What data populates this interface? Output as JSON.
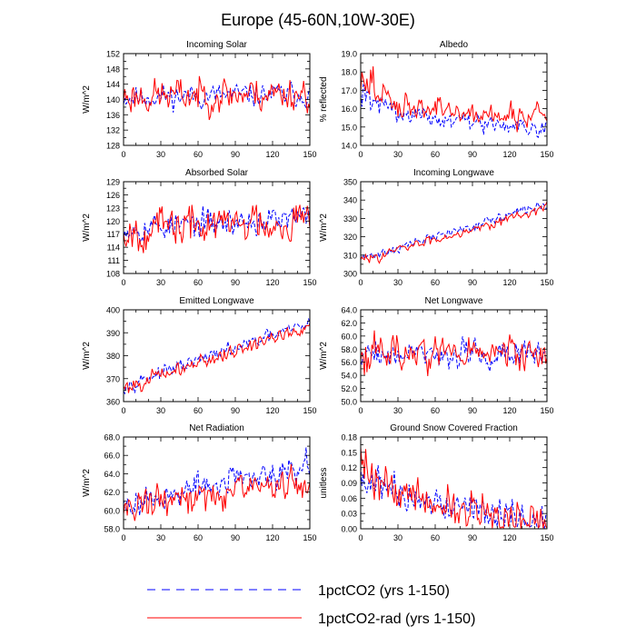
{
  "figure_title": "Europe (45-60N,10W-30E)",
  "legend": [
    {
      "label": "1pctCO2 (yrs 1-150)",
      "color": "#0000ff",
      "dash": true
    },
    {
      "label": "1pctCO2-rad (yrs 1-150)",
      "color": "#ff0000",
      "dash": false
    }
  ],
  "chart_data": [
    {
      "type": "line",
      "title": "Incoming Solar",
      "xlabel": "",
      "ylabel": "W/m^2",
      "xlim": [
        0,
        150
      ],
      "ylim": [
        128,
        152
      ],
      "xticks": [
        0,
        30,
        60,
        90,
        120,
        150
      ],
      "yticks": [
        128,
        132,
        136,
        140,
        144,
        148,
        152
      ],
      "ytick_labels": [
        "128",
        "132",
        "136",
        "140",
        "144",
        "148",
        "152"
      ],
      "series": [
        {
          "color": "#0000ff",
          "dashed": true,
          "base": 140.6,
          "amp": 2.4,
          "trend": 0.8,
          "seed": 11
        },
        {
          "color": "#ff0000",
          "dashed": false,
          "base": 140.8,
          "amp": 3.6,
          "trend": 1.0,
          "seed": 23
        }
      ]
    },
    {
      "type": "line",
      "title": "Albedo",
      "xlabel": "",
      "ylabel": "% reflected",
      "xlim": [
        0,
        150
      ],
      "ylim": [
        14,
        19
      ],
      "xticks": [
        0,
        30,
        60,
        90,
        120,
        150
      ],
      "yticks": [
        14,
        15,
        16,
        17,
        18,
        19
      ],
      "ytick_labels": [
        "14.0",
        "15.0",
        "16.0",
        "17.0",
        "18.0",
        "19.0"
      ],
      "series": [
        {
          "color": "#0000ff",
          "dashed": true,
          "base": 15.45,
          "amp": 0.35,
          "trend": -0.5,
          "decay": 1.3,
          "seed": 31
        },
        {
          "color": "#ff0000",
          "dashed": false,
          "base": 15.75,
          "amp": 0.55,
          "trend": -0.2,
          "decay": 1.6,
          "seed": 47
        }
      ]
    },
    {
      "type": "line",
      "title": "Absorbed Solar",
      "xlabel": "",
      "ylabel": "W/m^2",
      "xlim": [
        0,
        150
      ],
      "ylim": [
        108,
        129
      ],
      "xticks": [
        0,
        30,
        60,
        90,
        120,
        150
      ],
      "yticks": [
        108,
        111,
        114,
        117,
        120,
        123,
        126,
        129
      ],
      "ytick_labels": [
        "108",
        "111",
        "114",
        "117",
        "120",
        "123",
        "126",
        "129"
      ],
      "series": [
        {
          "color": "#0000ff",
          "dashed": true,
          "base": 118.5,
          "amp": 2.4,
          "trend": 2.0,
          "seed": 53
        },
        {
          "color": "#ff0000",
          "dashed": false,
          "base": 118.0,
          "amp": 3.6,
          "trend": 2.5,
          "seed": 67
        }
      ]
    },
    {
      "type": "line",
      "title": "Incoming Longwave",
      "xlabel": "",
      "ylabel": "W/m^2",
      "xlim": [
        0,
        150
      ],
      "ylim": [
        300,
        350
      ],
      "xticks": [
        0,
        30,
        60,
        90,
        120,
        150
      ],
      "yticks": [
        300,
        310,
        320,
        330,
        340,
        350
      ],
      "ytick_labels": [
        "300",
        "310",
        "320",
        "330",
        "340",
        "350"
      ],
      "series": [
        {
          "color": "#0000ff",
          "dashed": true,
          "base": 308,
          "amp": 2.0,
          "trend": 30,
          "seed": 71
        },
        {
          "color": "#ff0000",
          "dashed": false,
          "base": 307,
          "amp": 2.0,
          "trend": 29,
          "seed": 83
        }
      ]
    },
    {
      "type": "line",
      "title": "Emitted Longwave",
      "xlabel": "",
      "ylabel": "W/m^2",
      "xlim": [
        0,
        150
      ],
      "ylim": [
        360,
        400
      ],
      "xticks": [
        0,
        30,
        60,
        90,
        120,
        150
      ],
      "yticks": [
        360,
        370,
        380,
        390,
        400
      ],
      "ytick_labels": [
        "360",
        "370",
        "380",
        "390",
        "400"
      ],
      "series": [
        {
          "color": "#0000ff",
          "dashed": true,
          "base": 367,
          "amp": 2.2,
          "trend": 27,
          "seed": 97
        },
        {
          "color": "#ff0000",
          "dashed": false,
          "base": 366,
          "amp": 2.6,
          "trend": 27,
          "seed": 101
        }
      ]
    },
    {
      "type": "line",
      "title": "Net Longwave",
      "xlabel": "",
      "ylabel": "W/m^2",
      "xlim": [
        0,
        150
      ],
      "ylim": [
        50,
        64
      ],
      "xticks": [
        0,
        30,
        60,
        90,
        120,
        150
      ],
      "yticks": [
        50,
        52,
        54,
        56,
        58,
        60,
        62,
        64
      ],
      "ytick_labels": [
        "50.0",
        "52.0",
        "54.0",
        "56.0",
        "58.0",
        "60.0",
        "62.0",
        "64.0"
      ],
      "series": [
        {
          "color": "#0000ff",
          "dashed": true,
          "base": 57.3,
          "amp": 1.6,
          "trend": -0.3,
          "seed": 109
        },
        {
          "color": "#ff0000",
          "dashed": false,
          "base": 57.6,
          "amp": 2.2,
          "trend": -0.4,
          "seed": 113
        }
      ]
    },
    {
      "type": "line",
      "title": "Net Radiation",
      "xlabel": "",
      "ylabel": "W/m^2",
      "xlim": [
        0,
        150
      ],
      "ylim": [
        58,
        68
      ],
      "xticks": [
        0,
        30,
        60,
        90,
        120,
        150
      ],
      "yticks": [
        58,
        60,
        62,
        64,
        66,
        68
      ],
      "ytick_labels": [
        "58.0",
        "60.0",
        "62.0",
        "64.0",
        "66.0",
        "68.0"
      ],
      "series": [
        {
          "color": "#0000ff",
          "dashed": true,
          "base": 60.7,
          "amp": 1.2,
          "trend": 4.2,
          "seed": 127
        },
        {
          "color": "#ff0000",
          "dashed": false,
          "base": 60.5,
          "amp": 1.4,
          "trend": 2.6,
          "seed": 131
        }
      ]
    },
    {
      "type": "line",
      "title": "Ground Snow Covered Fraction",
      "xlabel": "",
      "ylabel": "unitless",
      "xlim": [
        0,
        150
      ],
      "ylim": [
        0,
        0.18
      ],
      "xticks": [
        0,
        30,
        60,
        90,
        120,
        150
      ],
      "yticks": [
        0,
        0.03,
        0.06,
        0.09,
        0.12,
        0.15,
        0.18
      ],
      "ytick_labels": [
        "0.00",
        "0.03",
        "0.06",
        "0.09",
        "0.12",
        "0.15",
        "0.18"
      ],
      "series": [
        {
          "color": "#0000ff",
          "dashed": true,
          "base": 0.065,
          "amp": 0.025,
          "trend": -0.055,
          "decay": 0.04,
          "seed": 137,
          "floor": 0.0
        },
        {
          "color": "#ff0000",
          "dashed": false,
          "base": 0.065,
          "amp": 0.03,
          "trend": -0.055,
          "decay": 0.05,
          "seed": 139,
          "floor": 0.0
        }
      ]
    }
  ]
}
